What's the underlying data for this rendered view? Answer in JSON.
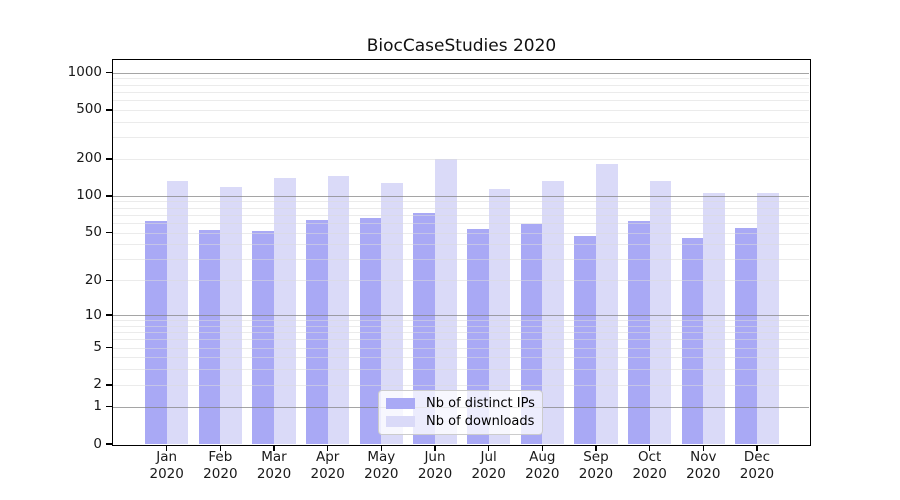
{
  "title": "BiocCaseStudies 2020",
  "chart_data": {
    "type": "bar",
    "title": "BiocCaseStudies 2020",
    "months": [
      "Jan",
      "Feb",
      "Mar",
      "Apr",
      "May",
      "Jun",
      "Jul",
      "Aug",
      "Sep",
      "Oct",
      "Nov",
      "Dec"
    ],
    "year_label": "2020",
    "series": [
      {
        "name": "Nb of distinct IPs",
        "color": "#a9a9f5",
        "values": [
          62,
          53,
          52,
          64,
          66,
          73,
          54,
          59,
          47,
          62,
          45,
          55
        ]
      },
      {
        "name": "Nb of downloads",
        "color": "#dadaf8",
        "values": [
          133,
          118,
          140,
          144,
          127,
          199,
          114,
          133,
          181,
          133,
          105,
          106
        ]
      }
    ],
    "yaxis": {
      "ticks": [
        1000,
        500,
        200,
        100,
        50,
        20,
        10,
        5,
        2,
        1,
        0
      ],
      "scale": "log10(1+v)",
      "range": [
        0,
        1264
      ]
    },
    "grid": {
      "on": true,
      "major_lines": [
        1,
        10,
        100,
        1000
      ],
      "minor_lines": [
        2,
        3,
        4,
        5,
        6,
        7,
        8,
        9,
        20,
        30,
        40,
        50,
        60,
        70,
        80,
        90,
        200,
        300,
        400,
        500,
        600,
        700,
        800,
        900
      ]
    },
    "legend": {
      "entries": [
        "Nb of distinct IPs",
        "Nb of downloads"
      ],
      "position": "lower center inside"
    }
  },
  "colors": {
    "background": "#ffffff",
    "axis": "#000000",
    "bar_ips": "#a9a9f5",
    "bar_downloads": "#dadaf8",
    "grid_major": "#a9a9a9",
    "grid_minor": "#ececec",
    "legend_border": "#cccccc",
    "text": "#1a1a1a"
  }
}
